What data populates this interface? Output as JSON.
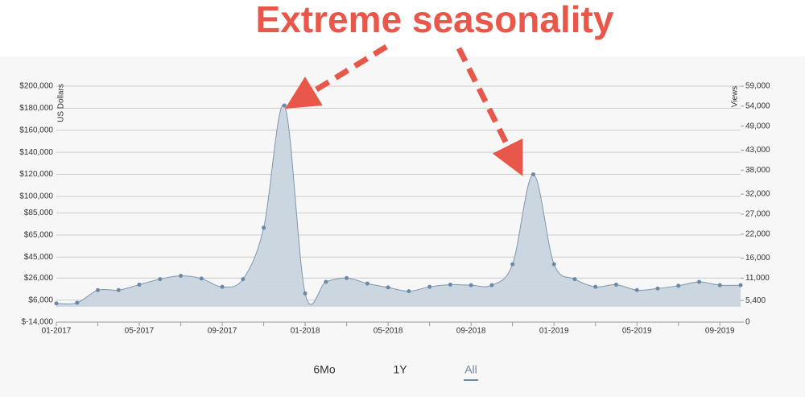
{
  "chart_data": {
    "type": "area",
    "annotation": "Extreme seasonality",
    "y_label": "US Dollars",
    "y2_label": "Views",
    "categories": [
      "01-2017",
      null,
      null,
      null,
      "05-2017",
      null,
      null,
      null,
      "09-2017",
      null,
      null,
      null,
      "01-2018",
      null,
      null,
      null,
      "05-2018",
      null,
      null,
      null,
      "09-2018",
      null,
      null,
      null,
      "01-2019",
      null,
      null,
      null,
      "05-2019",
      null,
      null,
      null,
      "09-2019",
      null
    ],
    "series": [
      {
        "color": "#7f97ad",
        "values": [
          3000,
          3500,
          15000,
          15000,
          20000,
          25000,
          28000,
          25500,
          18000,
          25000,
          71500,
          182500,
          12000,
          22500,
          26000,
          21000,
          17500,
          14000,
          18000,
          20000,
          19500,
          19500,
          38500,
          120000,
          38500,
          25000,
          18000,
          20000,
          15000,
          16500,
          19000,
          22500,
          19500,
          19500
        ]
      }
    ],
    "ylim": [
      -14000,
      200000
    ],
    "yticks": [
      {
        "value": -14000,
        "label": "$-14,000"
      },
      {
        "value": 6000,
        "label": "$6,000"
      },
      {
        "value": 26000,
        "label": "$26,000"
      },
      {
        "value": 45000,
        "label": "$45,000"
      },
      {
        "value": 65000,
        "label": "$65,000"
      },
      {
        "value": 85000,
        "label": "$85,000"
      },
      {
        "value": 100000,
        "label": "$100,000"
      },
      {
        "value": 120000,
        "label": "$120,000"
      },
      {
        "value": 140000,
        "label": "$140,000"
      },
      {
        "value": 160000,
        "label": "$160,000"
      },
      {
        "value": 180000,
        "label": "$180,000"
      },
      {
        "value": 200000,
        "label": "$200,000"
      }
    ],
    "y2lim": [
      0,
      59000
    ],
    "y2ticks": [
      0,
      {
        "value": 5400,
        "label": "5,400"
      },
      {
        "value": 11000,
        "label": "11,000"
      },
      {
        "value": 16000,
        "label": "16,000"
      },
      {
        "value": 22000,
        "label": "22,000"
      },
      {
        "value": 27000,
        "label": "27,000"
      },
      {
        "value": 32000,
        "label": "32,000"
      },
      {
        "value": 38000,
        "label": "38,000"
      },
      {
        "value": 43000,
        "label": "43,000"
      },
      {
        "value": 49000,
        "label": "49,000"
      },
      {
        "value": 54000,
        "label": "54,000"
      },
      {
        "value": 59000,
        "label": "59,000"
      }
    ],
    "grid": true,
    "range_buttons": [
      "6Mo",
      "1Y",
      "All"
    ],
    "selected_range": "All"
  }
}
